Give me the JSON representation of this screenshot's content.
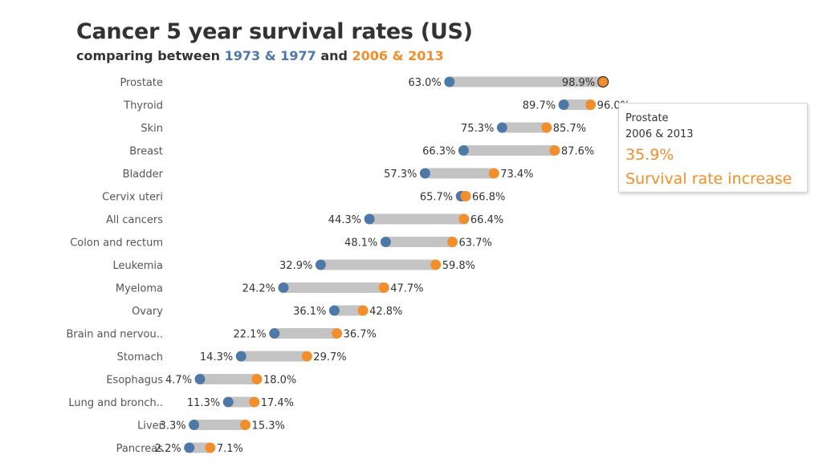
{
  "title": "Cancer 5 year survival rates (US)",
  "subtitle": {
    "prefix": "comparing between ",
    "period1": "1973 & 1977",
    "joiner": " and ",
    "period2": "2006 & 2013"
  },
  "colors": {
    "period1": "#4e79a7",
    "period2": "#f28e2b",
    "bar": "#c4c4c4"
  },
  "tooltip": {
    "category": "Prostate",
    "period": "2006 & 2013",
    "value": "35.9%",
    "caption": "Survival rate increase"
  },
  "chart_data": {
    "type": "dumbbell",
    "categories": [
      "Prostate",
      "Thyroid",
      "Skin",
      "Breast",
      "Bladder",
      "Cervix uteri",
      "All cancers",
      "Colon and rectum",
      "Leukemia",
      "Myeloma",
      "Ovary",
      "Brain and nervou..",
      "Stomach",
      "Esophagus",
      "Lung and bronch..",
      "Liver",
      "Pancreas"
    ],
    "series": [
      {
        "name": "1973 & 1977",
        "values": [
          63.0,
          89.7,
          75.3,
          66.3,
          57.3,
          65.7,
          44.3,
          48.1,
          32.9,
          24.2,
          36.1,
          22.1,
          14.3,
          4.7,
          11.3,
          3.3,
          2.2
        ]
      },
      {
        "name": "2006 & 2013",
        "values": [
          98.9,
          96.0,
          85.7,
          87.6,
          73.4,
          66.8,
          66.4,
          63.7,
          59.8,
          47.7,
          42.8,
          36.7,
          29.7,
          18.0,
          17.4,
          15.3,
          7.1
        ]
      }
    ],
    "value_labels": {
      "start": [
        "63.0%",
        "89.7%",
        "75.3%",
        "66.3%",
        "57.3%",
        "65.7%",
        "44.3%",
        "48.1%",
        "32.9%",
        "24.2%",
        "36.1%",
        "22.1%",
        "14.3%",
        "4.7%",
        "11.3%",
        "3.3%",
        "2.2%"
      ],
      "end": [
        "98.9%",
        "96.0%",
        "85.7%",
        "87.6%",
        "73.4%",
        "66.8%",
        "66.4%",
        "63.7%",
        "59.8%",
        "47.7%",
        "42.8%",
        "36.7%",
        "29.7%",
        "18.0%",
        "17.4%",
        "15.3%",
        "7.1%"
      ]
    },
    "highlighted": "Prostate",
    "xlim": [
      0,
      100
    ],
    "grid": false,
    "legend": "none"
  }
}
